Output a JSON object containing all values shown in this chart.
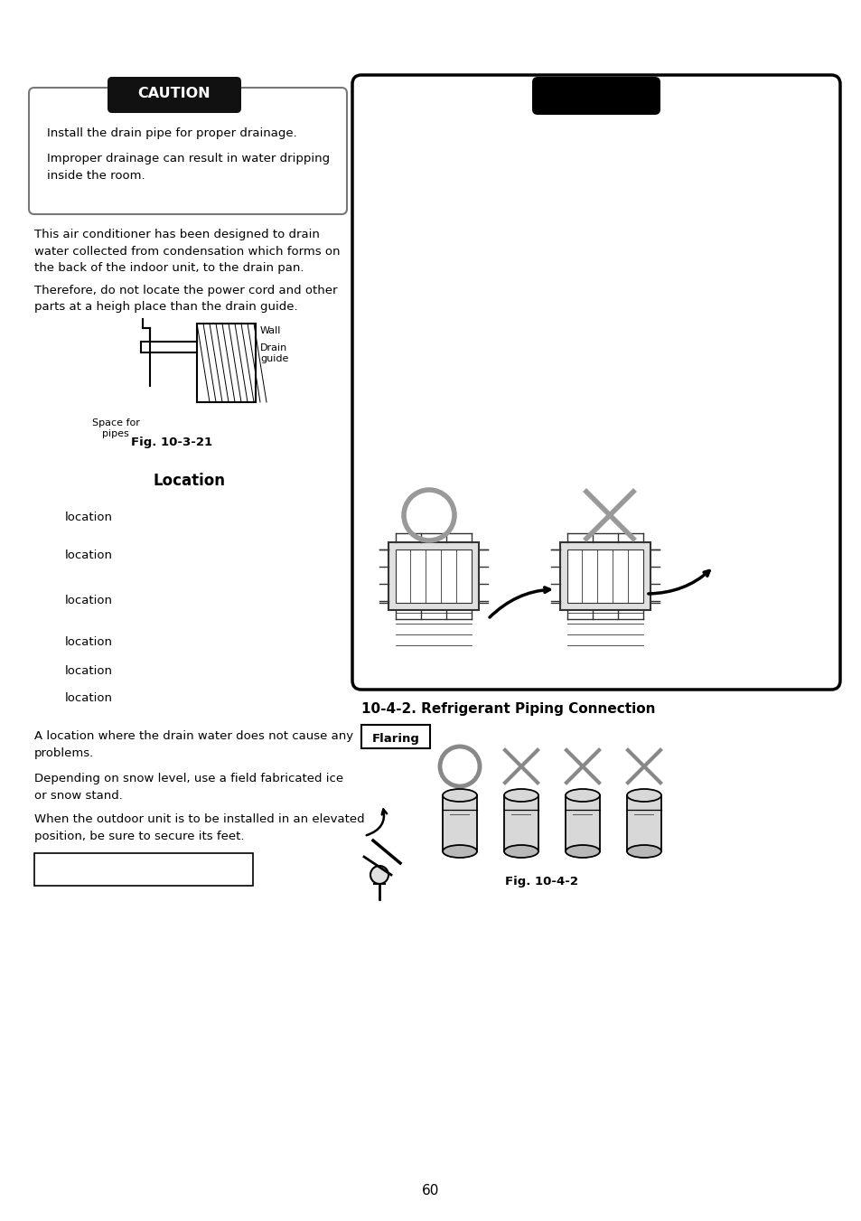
{
  "bg_color": "#ffffff",
  "page_number": "60",
  "caution_title": "CAUTION",
  "caution_line1": "Install the drain pipe for proper drainage.",
  "caution_line2": "Improper drainage can result in water dripping",
  "caution_line3": "inside the room.",
  "para1": "This air conditioner has been designed to drain\nwater collected from condensation which forms on\nthe back of the indoor unit, to the drain pan.",
  "para2": "Therefore, do not locate the power cord and other\nparts at a heigh place than the drain guide.",
  "fig1_label": "Fig. 10-3-21",
  "wall_label": "Wall",
  "drain_label": "Drain\nguide",
  "space_label": "Space for\npipes",
  "location_title": "Location",
  "location_items": [
    "location",
    "location",
    "location",
    "location",
    "location",
    "location"
  ],
  "para3": "A location where the drain water does not cause any\nproblems.",
  "para4": "Depending on snow level, use a field fabricated ice\nor snow stand.",
  "para5": "When the outdoor unit is to be installed in an elevated\nposition, be sure to secure its feet.",
  "section_title": "10-4-2. Refrigerant Piping Connection",
  "flaring_label": "Flaring",
  "fig2_label": "Fig. 10-4-2"
}
